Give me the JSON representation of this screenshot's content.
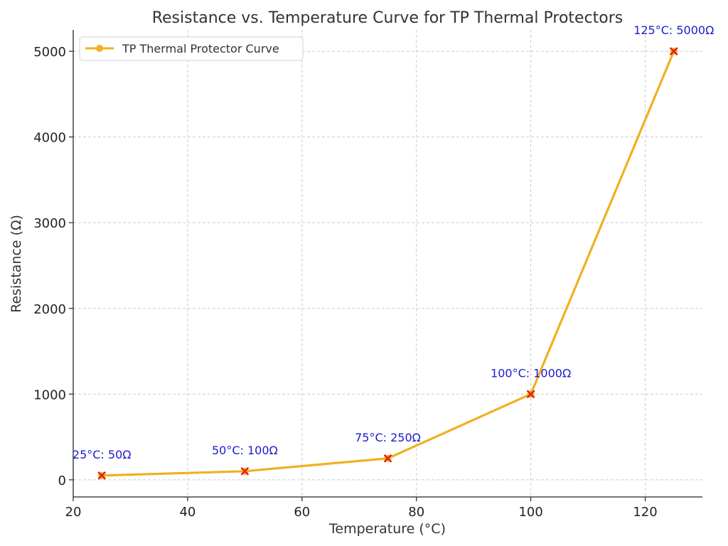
{
  "chart_data": {
    "type": "line",
    "title": "Resistance vs. Temperature Curve for TP Thermal Protectors",
    "xlabel": "Temperature (°C)",
    "ylabel": "Resistance (Ω)",
    "xlim": [
      20,
      130
    ],
    "ylim": [
      -200,
      5250
    ],
    "xticks": [
      20,
      40,
      60,
      80,
      100,
      120
    ],
    "yticks": [
      0,
      1000,
      2000,
      3000,
      4000,
      5000
    ],
    "grid": true,
    "legend_position": "top-left",
    "series": [
      {
        "name": "TP Thermal Protector Curve",
        "color": "#f0b020",
        "marker_color": "#e02010",
        "x": [
          25,
          50,
          75,
          100,
          125
        ],
        "y": [
          50,
          100,
          250,
          1000,
          5000
        ]
      }
    ],
    "annotations": [
      {
        "text": "25°C: 50Ω",
        "x": 25,
        "y": 50
      },
      {
        "text": "50°C: 100Ω",
        "x": 50,
        "y": 100
      },
      {
        "text": "75°C: 250Ω",
        "x": 75,
        "y": 250
      },
      {
        "text": "100°C: 1000Ω",
        "x": 100,
        "y": 1000
      },
      {
        "text": "125°C: 5000Ω",
        "x": 125,
        "y": 5000
      }
    ],
    "annotation_color": "#1a1acd"
  }
}
